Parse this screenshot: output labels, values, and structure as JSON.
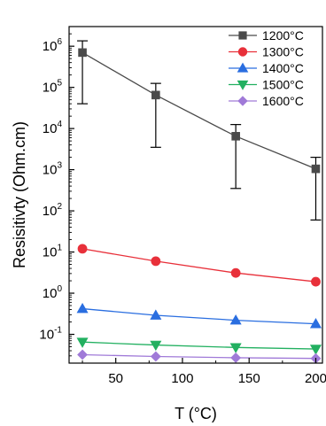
{
  "chart_data": {
    "type": "line",
    "xlabel": "T (°C)",
    "ylabel": "Resisitivty (Ohm.cm)",
    "xlim": [
      15,
      205
    ],
    "ylim": [
      0.02,
      3000000
    ],
    "yscale": "log",
    "x_ticks": [
      50,
      100,
      150,
      200
    ],
    "x_tick_labels": [
      "50",
      "100",
      "150",
      "200"
    ],
    "y_ticks": [
      0.1,
      1,
      10,
      100,
      1000,
      10000,
      100000,
      1000000
    ],
    "y_tick_labels": [
      {
        "base": "10",
        "exp": "-1"
      },
      {
        "base": "10",
        "exp": "0"
      },
      {
        "base": "10",
        "exp": "1"
      },
      {
        "base": "10",
        "exp": "2"
      },
      {
        "base": "10",
        "exp": "3"
      },
      {
        "base": "10",
        "exp": "4"
      },
      {
        "base": "10",
        "exp": "5"
      },
      {
        "base": "10",
        "exp": "6"
      }
    ],
    "legend_position": "top-right",
    "x": [
      25,
      80,
      140,
      200
    ],
    "series": [
      {
        "name": "1200°C",
        "marker": "square",
        "color": "#4a4a4a",
        "values": [
          700000,
          65000,
          6500,
          1050
        ],
        "error_low": [
          40000,
          3500,
          350,
          60
        ],
        "error_high": [
          1350000,
          125000,
          12500,
          2000
        ]
      },
      {
        "name": "1300°C",
        "marker": "circle",
        "color": "#e8303a",
        "values": [
          12,
          6,
          3.1,
          1.9
        ]
      },
      {
        "name": "1400°C",
        "marker": "triangle-up",
        "color": "#2a6ee0",
        "values": [
          0.42,
          0.29,
          0.22,
          0.18
        ]
      },
      {
        "name": "1500°C",
        "marker": "triangle-down",
        "color": "#22b060",
        "values": [
          0.065,
          0.055,
          0.048,
          0.044
        ]
      },
      {
        "name": "1600°C",
        "marker": "diamond",
        "color": "#a07ad8",
        "values": [
          0.032,
          0.029,
          0.027,
          0.026
        ]
      }
    ]
  }
}
